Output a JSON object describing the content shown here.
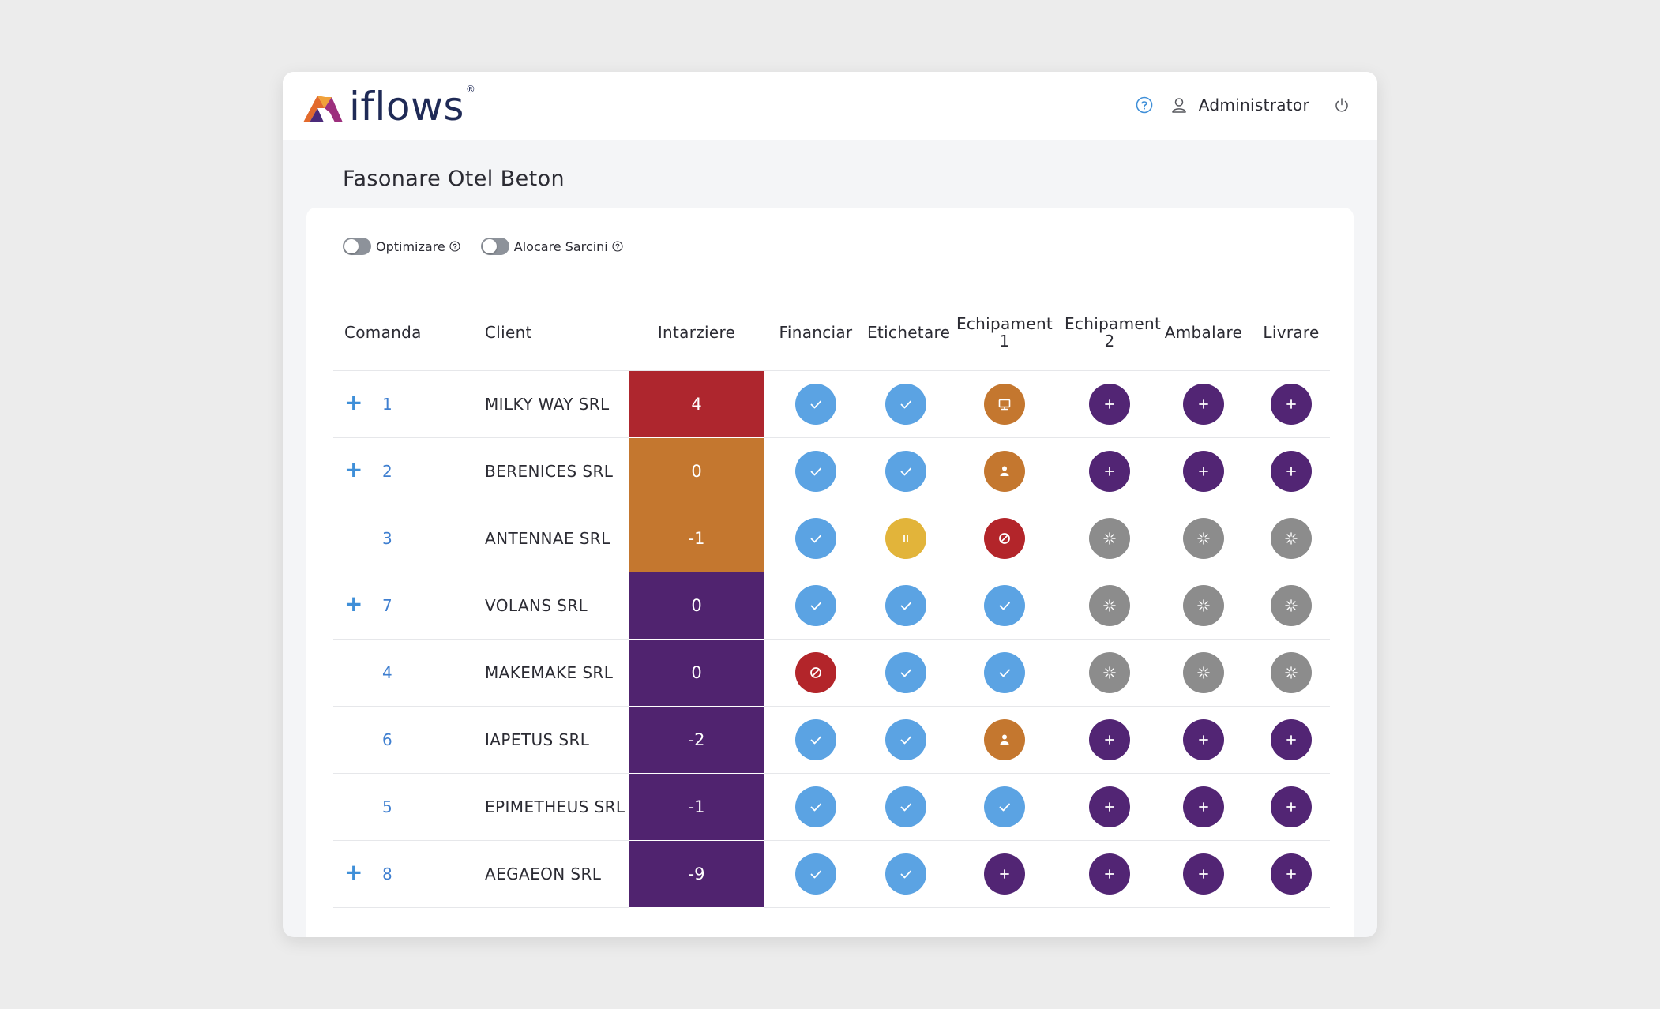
{
  "app": {
    "logo_text": "iflows",
    "logo_reg": "®",
    "user_name": "Administrator"
  },
  "page_title": "Fasonare Otel Beton",
  "toggles": [
    {
      "label": "Optimizare",
      "on": false
    },
    {
      "label": "Alocare Sarcini",
      "on": false
    }
  ],
  "columns": {
    "comanda": "Comanda",
    "client": "Client",
    "intarziere": "Intarziere",
    "financiar": "Financiar",
    "etichetare": "Etichetare",
    "echip1_line1": "Echipament",
    "echip1_line2": "1",
    "echip2_line1": "Echipament",
    "echip2_line2": "2",
    "ambalare": "Ambalare",
    "livrare": "Livrare"
  },
  "colors": {
    "done": "#5ba3e3",
    "pending": "#522574",
    "working": "#c4772f",
    "blocked": "#b3252a",
    "paused": "#e2b43a",
    "waiting": "#8c8c8c",
    "delay_red": "#ae262e",
    "delay_orange": "#c4772f",
    "delay_purple": "#50236f"
  },
  "rows": [
    {
      "expand": "+",
      "comanda": "1",
      "client": "MILKY WAY SRL",
      "intarziere": "4",
      "delay_color": "#ae262e",
      "status": [
        "check",
        "check",
        "monitor",
        "plus",
        "plus",
        "plus"
      ]
    },
    {
      "expand": "+",
      "comanda": "2",
      "client": "BERENICES SRL",
      "intarziere": "0",
      "delay_color": "#c4772f",
      "status": [
        "check",
        "check",
        "person",
        "plus",
        "plus",
        "plus"
      ]
    },
    {
      "expand": "",
      "comanda": "3",
      "client": "ANTENNAE SRL",
      "intarziere": "-1",
      "delay_color": "#c4772f",
      "status": [
        "check",
        "pause",
        "blocked",
        "spinner",
        "spinner",
        "spinner"
      ]
    },
    {
      "expand": "+",
      "comanda": "7",
      "client": "VOLANS SRL",
      "intarziere": "0",
      "delay_color": "#50236f",
      "status": [
        "check",
        "check",
        "check",
        "spinner",
        "spinner",
        "spinner"
      ]
    },
    {
      "expand": "",
      "comanda": "4",
      "client": "MAKEMAKE SRL",
      "intarziere": "0",
      "delay_color": "#50236f",
      "status": [
        "blocked",
        "check",
        "check",
        "spinner",
        "spinner",
        "spinner"
      ]
    },
    {
      "expand": "",
      "comanda": "6",
      "client": "IAPETUS SRL",
      "intarziere": "-2",
      "delay_color": "#50236f",
      "status": [
        "check",
        "check",
        "person",
        "plus",
        "plus",
        "plus"
      ]
    },
    {
      "expand": "",
      "comanda": "5",
      "client": "EPIMETHEUS SRL",
      "intarziere": "-1",
      "delay_color": "#50236f",
      "status": [
        "check",
        "check",
        "check",
        "plus",
        "plus",
        "plus"
      ]
    },
    {
      "expand": "+",
      "comanda": "8",
      "client": "AEGAEON SRL",
      "intarziere": "-9",
      "delay_color": "#50236f",
      "status": [
        "check",
        "check",
        "plus",
        "plus",
        "plus",
        "plus"
      ]
    }
  ]
}
